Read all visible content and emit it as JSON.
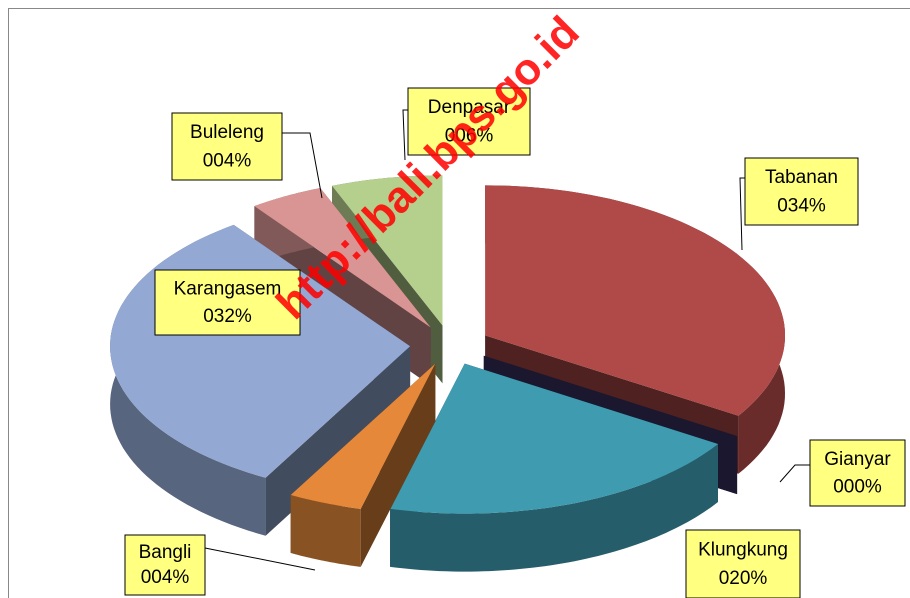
{
  "chart_data": {
    "type": "pie",
    "categories": [
      "Tabanan",
      "Gianyar",
      "Klungkung",
      "Bangli",
      "Karangasem",
      "Buleleng",
      "Denpasar"
    ],
    "values": [
      34,
      0,
      20,
      4,
      32,
      4,
      6
    ],
    "value_labels": [
      "034%",
      "000%",
      "020%",
      "004%",
      "032%",
      "004%",
      "006%"
    ],
    "colors": [
      "#b04a48",
      "#3d3366",
      "#3f9bb0",
      "#e5883a",
      "#93a9d4",
      "#d99594",
      "#b5cf8d"
    ],
    "watermark": "http://bali.bps.go.id"
  }
}
